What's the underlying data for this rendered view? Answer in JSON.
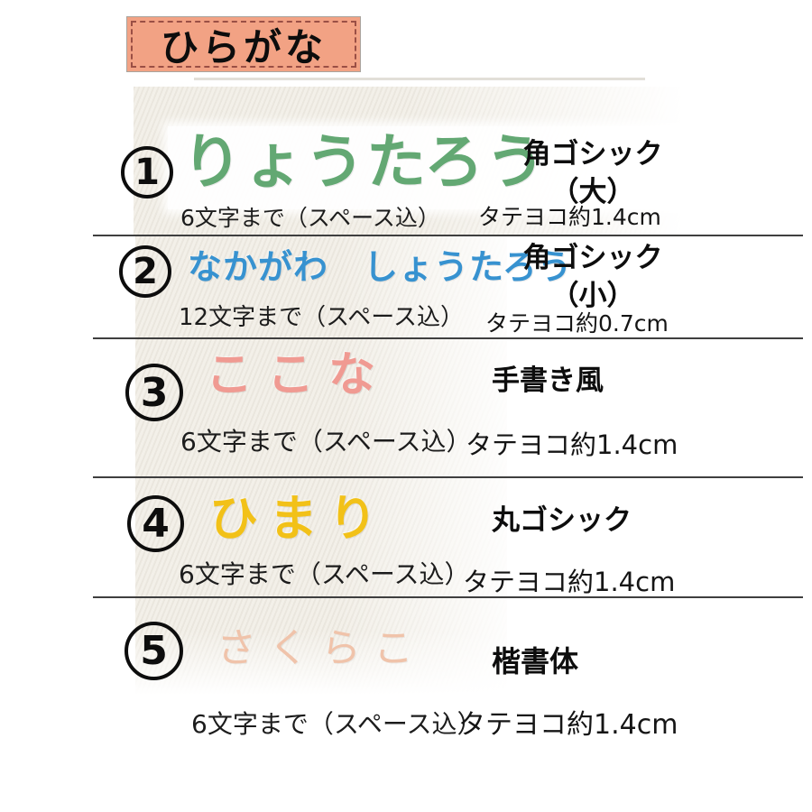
{
  "header": {
    "title": "ひらがな"
  },
  "colors": {
    "header_bg": "#f2a284",
    "header_dash": "#9a4f45",
    "fabric": "#f3f0e9",
    "divider": "#3f3f3f"
  },
  "rows": [
    {
      "number": "1",
      "sample": "りょうたろう",
      "thread_color": "#63a873",
      "limit": "6文字まで（スペース込）",
      "font_line1": "角ゴシック",
      "font_line2": "（大）",
      "size": "タテヨコ約1.4cm"
    },
    {
      "number": "2",
      "sample": "なかがわ　しょうたろう",
      "thread_color": "#3792d0",
      "limit": "12文字まで（スペース込）",
      "font_line1": "角ゴシック",
      "font_line2": "（小）",
      "size": "タテヨコ約0.7cm"
    },
    {
      "number": "3",
      "sample": "ここな",
      "thread_color": "#f09a92",
      "limit": "6文字まで（スペース込）",
      "font_line1": "手書き風",
      "font_line2": "",
      "size": "タテヨコ約1.4cm"
    },
    {
      "number": "4",
      "sample": "ひまり",
      "thread_color": "#f2c118",
      "limit": "6文字まで（スペース込）",
      "font_line1": "丸ゴシック",
      "font_line2": "",
      "size": "タテヨコ約1.4cm"
    },
    {
      "number": "5",
      "sample": "さくらこ",
      "thread_color": "#f0c3aa",
      "limit": "6文字まで（スペース込）",
      "font_line1": "楷書体",
      "font_line2": "",
      "size": "タテヨコ約1.4cm"
    }
  ]
}
